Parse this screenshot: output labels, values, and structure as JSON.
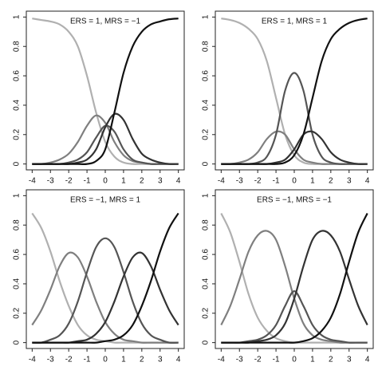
{
  "chart_data": [
    {
      "type": "line",
      "annotation": "ERS = 1, MRS = −1",
      "x": [
        -4,
        -3.5,
        -3,
        -2.5,
        -2,
        -1.5,
        -1,
        -0.5,
        0,
        0.5,
        1,
        1.5,
        2,
        2.5,
        3,
        3.5,
        4
      ],
      "xlim": [
        -4.32,
        4.32
      ],
      "ylim": [
        -0.04,
        1.04
      ],
      "xticks": [
        -4,
        -3,
        -2,
        -1,
        0,
        1,
        2,
        3,
        4
      ],
      "yticks": [
        0,
        0.2,
        0.4,
        0.6,
        0.8,
        1
      ],
      "series": [
        {
          "color": "#b0b0b0",
          "values": [
            0.99,
            0.98,
            0.97,
            0.95,
            0.9,
            0.8,
            0.6,
            0.35,
            0.15,
            0.05,
            0.01,
            0,
            0,
            0,
            0,
            0,
            0
          ]
        },
        {
          "color": "#7f7f7f",
          "values": [
            0,
            0,
            0.01,
            0.03,
            0.07,
            0.15,
            0.26,
            0.33,
            0.28,
            0.15,
            0.06,
            0.02,
            0.01,
            0,
            0,
            0,
            0
          ]
        },
        {
          "color": "#555555",
          "values": [
            0,
            0,
            0,
            0,
            0.01,
            0.03,
            0.08,
            0.18,
            0.26,
            0.22,
            0.1,
            0.03,
            0.01,
            0,
            0,
            0,
            0
          ]
        },
        {
          "color": "#333333",
          "values": [
            0,
            0,
            0,
            0,
            0,
            0.01,
            0.03,
            0.1,
            0.25,
            0.34,
            0.3,
            0.17,
            0.07,
            0.03,
            0.01,
            0,
            0
          ]
        },
        {
          "color": "#111111",
          "values": [
            0,
            0,
            0,
            0,
            0,
            0,
            0,
            0.02,
            0.1,
            0.35,
            0.62,
            0.8,
            0.9,
            0.95,
            0.97,
            0.985,
            0.99
          ]
        }
      ]
    },
    {
      "type": "line",
      "annotation": "ERS = 1, MRS = 1",
      "x": [
        -4,
        -3.5,
        -3,
        -2.5,
        -2,
        -1.5,
        -1,
        -0.5,
        0,
        0.5,
        1,
        1.5,
        2,
        2.5,
        3,
        3.5,
        4
      ],
      "xlim": [
        -4.32,
        4.32
      ],
      "ylim": [
        -0.04,
        1.04
      ],
      "xticks": [
        -4,
        -3,
        -2,
        -1,
        0,
        1,
        2,
        3,
        4
      ],
      "yticks": [
        0,
        0.2,
        0.4,
        0.6,
        0.8,
        1
      ],
      "series": [
        {
          "color": "#b0b0b0",
          "values": [
            0.99,
            0.98,
            0.96,
            0.92,
            0.85,
            0.7,
            0.45,
            0.2,
            0.06,
            0.01,
            0,
            0,
            0,
            0,
            0,
            0,
            0
          ]
        },
        {
          "color": "#7f7f7f",
          "values": [
            0,
            0,
            0.01,
            0.03,
            0.08,
            0.17,
            0.22,
            0.2,
            0.1,
            0.03,
            0.01,
            0,
            0,
            0,
            0,
            0,
            0
          ]
        },
        {
          "color": "#555555",
          "values": [
            0,
            0,
            0,
            0,
            0.01,
            0.05,
            0.2,
            0.5,
            0.62,
            0.5,
            0.2,
            0.05,
            0.01,
            0,
            0,
            0,
            0
          ]
        },
        {
          "color": "#333333",
          "values": [
            0,
            0,
            0,
            0,
            0,
            0,
            0.01,
            0.03,
            0.1,
            0.2,
            0.22,
            0.17,
            0.08,
            0.03,
            0.01,
            0,
            0
          ]
        },
        {
          "color": "#111111",
          "values": [
            0,
            0,
            0,
            0,
            0,
            0,
            0,
            0.01,
            0.06,
            0.2,
            0.45,
            0.7,
            0.85,
            0.92,
            0.96,
            0.98,
            0.99
          ]
        }
      ]
    },
    {
      "type": "line",
      "annotation": "ERS = −1, MRS = 1",
      "x": [
        -4,
        -3.5,
        -3,
        -2.5,
        -2,
        -1.5,
        -1,
        -0.5,
        0,
        0.5,
        1,
        1.5,
        2,
        2.5,
        3,
        3.5,
        4
      ],
      "xlim": [
        -4.32,
        4.32
      ],
      "ylim": [
        -0.04,
        1.04
      ],
      "xticks": [
        -4,
        -3,
        -2,
        -1,
        0,
        1,
        2,
        3,
        4
      ],
      "yticks": [
        0,
        0.2,
        0.4,
        0.6,
        0.8,
        1
      ],
      "series": [
        {
          "color": "#b0b0b0",
          "values": [
            0.88,
            0.78,
            0.62,
            0.42,
            0.25,
            0.12,
            0.05,
            0.02,
            0.01,
            0,
            0,
            0,
            0,
            0,
            0,
            0,
            0
          ]
        },
        {
          "color": "#7f7f7f",
          "values": [
            0.12,
            0.22,
            0.36,
            0.52,
            0.61,
            0.58,
            0.45,
            0.28,
            0.14,
            0.06,
            0.02,
            0.01,
            0,
            0,
            0,
            0,
            0
          ]
        },
        {
          "color": "#555555",
          "values": [
            0,
            0,
            0.02,
            0.05,
            0.13,
            0.28,
            0.48,
            0.65,
            0.71,
            0.65,
            0.48,
            0.28,
            0.13,
            0.05,
            0.02,
            0,
            0
          ]
        },
        {
          "color": "#333333",
          "values": [
            0,
            0,
            0,
            0,
            0,
            0.01,
            0.02,
            0.06,
            0.14,
            0.28,
            0.45,
            0.58,
            0.61,
            0.52,
            0.36,
            0.22,
            0.12
          ]
        },
        {
          "color": "#111111",
          "values": [
            0,
            0,
            0,
            0,
            0,
            0,
            0,
            0,
            0.01,
            0.02,
            0.05,
            0.12,
            0.25,
            0.42,
            0.62,
            0.78,
            0.88
          ]
        }
      ]
    },
    {
      "type": "line",
      "annotation": "ERS = −1, MRS = −1",
      "x": [
        -4,
        -3.5,
        -3,
        -2.5,
        -2,
        -1.5,
        -1,
        -0.5,
        0,
        0.5,
        1,
        1.5,
        2,
        2.5,
        3,
        3.5,
        4
      ],
      "xlim": [
        -4.32,
        4.32
      ],
      "ylim": [
        -0.04,
        1.04
      ],
      "xticks": [
        -4,
        -3,
        -2,
        -1,
        0,
        1,
        2,
        3,
        4
      ],
      "yticks": [
        0,
        0.2,
        0.4,
        0.6,
        0.8,
        1
      ],
      "series": [
        {
          "color": "#b0b0b0",
          "values": [
            0.88,
            0.75,
            0.55,
            0.33,
            0.17,
            0.08,
            0.03,
            0.01,
            0,
            0,
            0,
            0,
            0,
            0,
            0,
            0,
            0
          ]
        },
        {
          "color": "#7f7f7f",
          "values": [
            0.12,
            0.25,
            0.43,
            0.62,
            0.73,
            0.76,
            0.7,
            0.52,
            0.3,
            0.13,
            0.05,
            0.02,
            0.01,
            0,
            0,
            0,
            0
          ]
        },
        {
          "color": "#555555",
          "values": [
            0,
            0,
            0,
            0.01,
            0.02,
            0.05,
            0.12,
            0.25,
            0.35,
            0.25,
            0.12,
            0.05,
            0.02,
            0.01,
            0,
            0,
            0
          ]
        },
        {
          "color": "#333333",
          "values": [
            0,
            0,
            0,
            0,
            0.01,
            0.02,
            0.05,
            0.13,
            0.3,
            0.52,
            0.7,
            0.76,
            0.73,
            0.62,
            0.43,
            0.25,
            0.12
          ]
        },
        {
          "color": "#111111",
          "values": [
            0,
            0,
            0,
            0,
            0,
            0,
            0,
            0,
            0,
            0.01,
            0.03,
            0.08,
            0.17,
            0.33,
            0.55,
            0.75,
            0.88
          ]
        }
      ]
    }
  ]
}
